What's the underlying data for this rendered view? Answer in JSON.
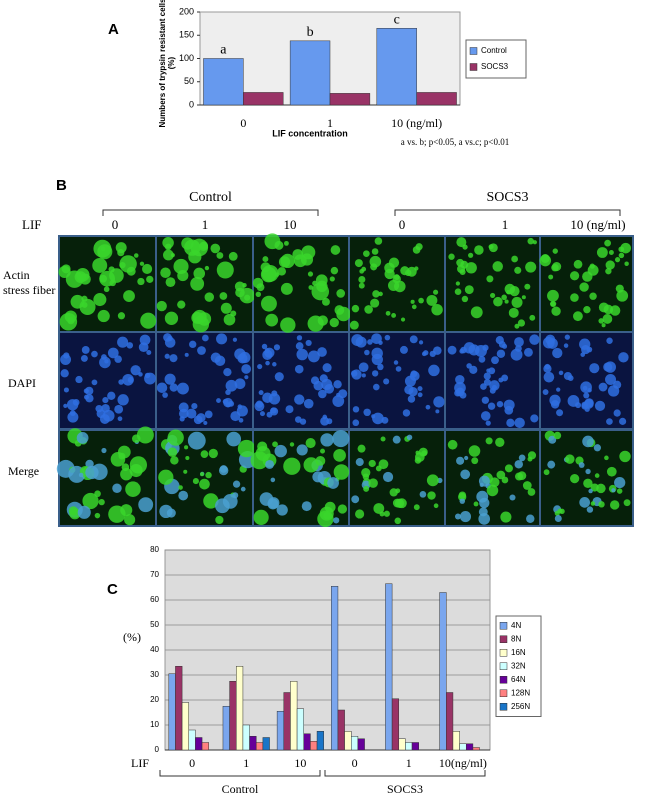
{
  "chart_data": [
    {
      "type": "bar",
      "panel_label": "A",
      "y_label": "Numbers of trypsin resistant cells (%)",
      "x_label": "LIF concentration",
      "categories": [
        "0",
        "1",
        "10 (ng/ml)"
      ],
      "series": [
        {
          "name": "Control",
          "color": "#6699ee",
          "values": [
            100,
            138,
            165
          ]
        },
        {
          "name": "SOCS3",
          "color": "#993366",
          "values": [
            27,
            25,
            27
          ]
        }
      ],
      "bar_letters": [
        "a",
        "b",
        "c"
      ],
      "footnote": "a vs. b; p<0.05, a vs.c; p<0.01",
      "ylim": [
        0,
        200
      ],
      "yticks": [
        0,
        50,
        100,
        150,
        200
      ],
      "grid": false,
      "legend": "right"
    },
    {
      "type": "bar",
      "panel_label": "C",
      "y_label": "(%)",
      "x_prefix": "LIF",
      "categories": [
        "0",
        "1",
        "10",
        "0",
        "1",
        "10(ng/ml)"
      ],
      "groups": [
        "Control",
        "SOCS3"
      ],
      "series": [
        {
          "name": "4N",
          "color": "#7aa6ee",
          "values": [
            30.5,
            17.5,
            15.5,
            65.5,
            66.5,
            63
          ]
        },
        {
          "name": "8N",
          "color": "#993366",
          "values": [
            33.5,
            27.5,
            23,
            16,
            20.5,
            23
          ]
        },
        {
          "name": "16N",
          "color": "#ffffcc",
          "values": [
            19,
            33.5,
            27.5,
            7.5,
            4.5,
            7.5
          ]
        },
        {
          "name": "32N",
          "color": "#ccffff",
          "values": [
            8,
            10,
            16.5,
            5.5,
            3,
            2.5
          ]
        },
        {
          "name": "64N",
          "color": "#660099",
          "values": [
            5,
            5.5,
            6.5,
            4.5,
            3,
            2.5
          ]
        },
        {
          "name": "128N",
          "color": "#ff8080",
          "values": [
            3,
            3,
            3.5,
            0,
            0,
            1
          ]
        },
        {
          "name": "256N",
          "color": "#1a75c8",
          "values": [
            0,
            5,
            7.5,
            0,
            0,
            0
          ]
        }
      ],
      "ylim": [
        0,
        80
      ],
      "yticks": [
        0,
        10,
        20,
        30,
        40,
        50,
        60,
        70,
        80
      ],
      "grid": true,
      "legend": "right"
    }
  ],
  "panel_b": {
    "label": "B",
    "groups": [
      "Control",
      "SOCS3"
    ],
    "lif_label": "LIF",
    "columns": [
      "0",
      "1",
      "10",
      "0",
      "1",
      "10 (ng/ml)"
    ],
    "rows": [
      "Actin stress fiber",
      "DAPI",
      "Merge"
    ]
  }
}
